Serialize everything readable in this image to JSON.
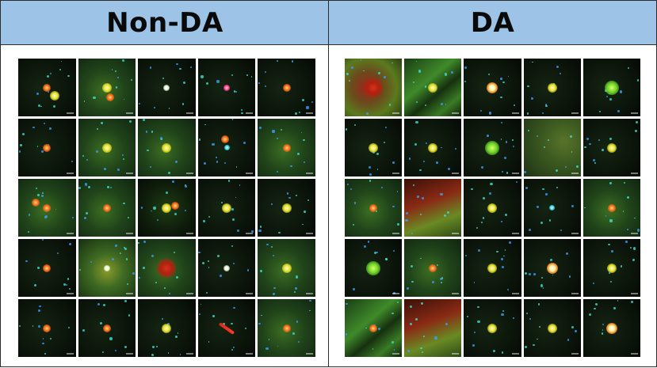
{
  "panels": [
    {
      "title": "Non-DA",
      "rows": 5,
      "cols": 5,
      "tiles": [
        {
          "bg": "dark",
          "sources": [
            "red-star",
            "yellow-star"
          ]
        },
        {
          "bg": "green-diffuse",
          "sources": [
            "yellow-star",
            "red-star"
          ]
        },
        {
          "bg": "dark",
          "sources": [
            "white-star"
          ]
        },
        {
          "bg": "dark",
          "sources": [
            "pink-star"
          ]
        },
        {
          "bg": "dark",
          "sources": [
            "red-star"
          ]
        },
        {
          "bg": "dark",
          "sources": [
            "red-star"
          ]
        },
        {
          "bg": "green-diffuse",
          "sources": [
            "yellow-star"
          ]
        },
        {
          "bg": "green-diffuse",
          "sources": [
            "yellow-star"
          ]
        },
        {
          "bg": "dark",
          "sources": [
            "cyan-star",
            "red-star"
          ]
        },
        {
          "bg": "green-diffuse",
          "sources": [
            "red-star"
          ]
        },
        {
          "bg": "green-diffuse",
          "sources": [
            "red-star",
            "red-star"
          ]
        },
        {
          "bg": "green-diffuse",
          "sources": [
            "red-star"
          ]
        },
        {
          "bg": "dark-green",
          "sources": [
            "yellow-star",
            "red-star"
          ]
        },
        {
          "bg": "dark",
          "sources": [
            "yellow-star"
          ]
        },
        {
          "bg": "dark",
          "sources": [
            "yellow-star"
          ]
        },
        {
          "bg": "dark",
          "sources": [
            "red-star"
          ]
        },
        {
          "bg": "yellow-diffuse",
          "sources": [
            "white-star"
          ]
        },
        {
          "bg": "green-diffuse",
          "sources": [
            "red-nebula"
          ]
        },
        {
          "bg": "dark",
          "sources": [
            "white-star"
          ]
        },
        {
          "bg": "green-diffuse",
          "sources": [
            "yellow-star"
          ]
        },
        {
          "bg": "dark",
          "sources": [
            "red-star"
          ]
        },
        {
          "bg": "dark",
          "sources": [
            "red-star"
          ]
        },
        {
          "bg": "dark",
          "sources": [
            "yellow-star"
          ]
        },
        {
          "bg": "dark",
          "sources": [
            "red-arrow"
          ]
        },
        {
          "bg": "green-diffuse",
          "sources": [
            "red-star"
          ]
        }
      ]
    },
    {
      "title": "DA",
      "rows": 5,
      "cols": 5,
      "tiles": [
        {
          "bg": "yellow-red-nebula",
          "sources": [
            "red-nebula"
          ]
        },
        {
          "bg": "green-filaments",
          "sources": [
            "yellow-star"
          ]
        },
        {
          "bg": "dark",
          "sources": [
            "white-core"
          ]
        },
        {
          "bg": "dark",
          "sources": [
            "yellow-star"
          ]
        },
        {
          "bg": "dark",
          "sources": [
            "green-blob"
          ]
        },
        {
          "bg": "dark",
          "sources": [
            "yellow-star"
          ]
        },
        {
          "bg": "dark",
          "sources": [
            "yellow-star"
          ]
        },
        {
          "bg": "dark",
          "sources": [
            "green-blob"
          ]
        },
        {
          "bg": "green-arc",
          "sources": []
        },
        {
          "bg": "dark",
          "sources": [
            "yellow-star"
          ]
        },
        {
          "bg": "green-diffuse",
          "sources": [
            "red-star"
          ]
        },
        {
          "bg": "red-green-nebula",
          "sources": []
        },
        {
          "bg": "dark",
          "sources": [
            "yellow-star"
          ]
        },
        {
          "bg": "dark",
          "sources": [
            "cyan-star"
          ]
        },
        {
          "bg": "green-diffuse",
          "sources": [
            "red-star"
          ]
        },
        {
          "bg": "dark",
          "sources": [
            "green-blob"
          ]
        },
        {
          "bg": "green-diffuse",
          "sources": [
            "red-star"
          ]
        },
        {
          "bg": "dark",
          "sources": [
            "yellow-star"
          ]
        },
        {
          "bg": "dark",
          "sources": [
            "white-core"
          ]
        },
        {
          "bg": "dark",
          "sources": [
            "yellow-star"
          ]
        },
        {
          "bg": "green-filaments",
          "sources": [
            "red-star"
          ]
        },
        {
          "bg": "red-green-nebula",
          "sources": []
        },
        {
          "bg": "dark",
          "sources": [
            "yellow-star"
          ]
        },
        {
          "bg": "dark",
          "sources": [
            "yellow-star"
          ]
        },
        {
          "bg": "dark",
          "sources": [
            "white-core"
          ]
        }
      ]
    }
  ],
  "colors": {
    "header_bg": "#9dc3e6",
    "border": "#2b2b2b",
    "tile_bg": "#0b130a"
  }
}
